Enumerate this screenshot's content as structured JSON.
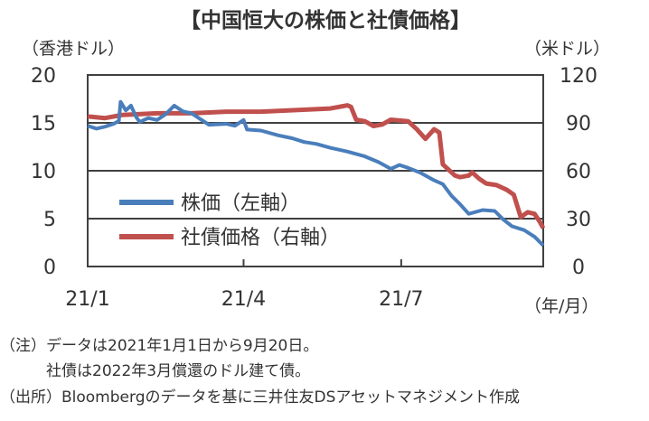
{
  "chart_data": {
    "type": "line",
    "title": "【中国恒大の株価と社債価格】",
    "ylabel_left": "（香港ドル）",
    "ylabel_right": "（米ドル）",
    "xlabel": "（年/月）",
    "y_left_ticks": [
      "0",
      "5",
      "10",
      "15",
      "20"
    ],
    "y_right_ticks": [
      "0",
      "30",
      "60",
      "90",
      "120"
    ],
    "ylim_left": [
      0,
      20
    ],
    "ylim_right": [
      0,
      120
    ],
    "x_ticks": [
      {
        "label": "21/1",
        "day": 0
      },
      {
        "label": "21/4",
        "day": 90
      },
      {
        "label": "21/7",
        "day": 181
      }
    ],
    "x_range_days": [
      0,
      263
    ],
    "grid": "horizontal",
    "legend_position": "bottom-left inside",
    "series": [
      {
        "name": "株価（左軸）",
        "axis": "left",
        "color": "#4a7ebb",
        "points": [
          [
            0,
            14.7
          ],
          [
            5,
            14.4
          ],
          [
            10,
            14.6
          ],
          [
            15,
            14.9
          ],
          [
            18,
            15.2
          ],
          [
            19,
            17.2
          ],
          [
            22,
            16.3
          ],
          [
            25,
            16.8
          ],
          [
            28,
            15.6
          ],
          [
            30,
            15.1
          ],
          [
            35,
            15.5
          ],
          [
            40,
            15.3
          ],
          [
            45,
            15.9
          ],
          [
            50,
            16.8
          ],
          [
            55,
            16.2
          ],
          [
            60,
            16.0
          ],
          [
            65,
            15.4
          ],
          [
            70,
            14.8
          ],
          [
            80,
            14.9
          ],
          [
            85,
            14.7
          ],
          [
            90,
            15.3
          ],
          [
            92,
            14.3
          ],
          [
            100,
            14.2
          ],
          [
            110,
            13.7
          ],
          [
            118,
            13.4
          ],
          [
            125,
            13.0
          ],
          [
            132,
            12.8
          ],
          [
            140,
            12.4
          ],
          [
            150,
            12.0
          ],
          [
            160,
            11.5
          ],
          [
            168,
            10.9
          ],
          [
            175,
            10.2
          ],
          [
            180,
            10.6
          ],
          [
            185,
            10.3
          ],
          [
            192,
            9.8
          ],
          [
            200,
            9.0
          ],
          [
            205,
            8.6
          ],
          [
            210,
            7.4
          ],
          [
            215,
            6.5
          ],
          [
            220,
            5.5
          ],
          [
            228,
            5.9
          ],
          [
            235,
            5.8
          ],
          [
            240,
            4.9
          ],
          [
            245,
            4.2
          ],
          [
            252,
            3.8
          ],
          [
            258,
            3.1
          ],
          [
            263,
            2.2
          ]
        ]
      },
      {
        "name": "社債価格（右軸）",
        "axis": "right",
        "color": "#c0504d",
        "points": [
          [
            0,
            94
          ],
          [
            10,
            93
          ],
          [
            20,
            95
          ],
          [
            40,
            96
          ],
          [
            60,
            96
          ],
          [
            80,
            97
          ],
          [
            100,
            97
          ],
          [
            120,
            98
          ],
          [
            140,
            99
          ],
          [
            150,
            101
          ],
          [
            152,
            100
          ],
          [
            155,
            92
          ],
          [
            160,
            91
          ],
          [
            165,
            88
          ],
          [
            170,
            89
          ],
          [
            175,
            92
          ],
          [
            185,
            91
          ],
          [
            190,
            86
          ],
          [
            195,
            80
          ],
          [
            200,
            86
          ],
          [
            203,
            84
          ],
          [
            205,
            64
          ],
          [
            208,
            61
          ],
          [
            212,
            57
          ],
          [
            215,
            56
          ],
          [
            220,
            57
          ],
          [
            222,
            59
          ],
          [
            226,
            55
          ],
          [
            230,
            52
          ],
          [
            236,
            51
          ],
          [
            242,
            48
          ],
          [
            246,
            45
          ],
          [
            250,
            31
          ],
          [
            254,
            34
          ],
          [
            258,
            33
          ],
          [
            261,
            28
          ],
          [
            263,
            24
          ]
        ]
      }
    ]
  },
  "notes": [
    "（注）データは2021年1月1日から9月20日。",
    "　　　社債は2022年3月償還のドル建て債。",
    "（出所）Bloombergのデータを基に三井住友DSアセットマネジメント作成"
  ]
}
